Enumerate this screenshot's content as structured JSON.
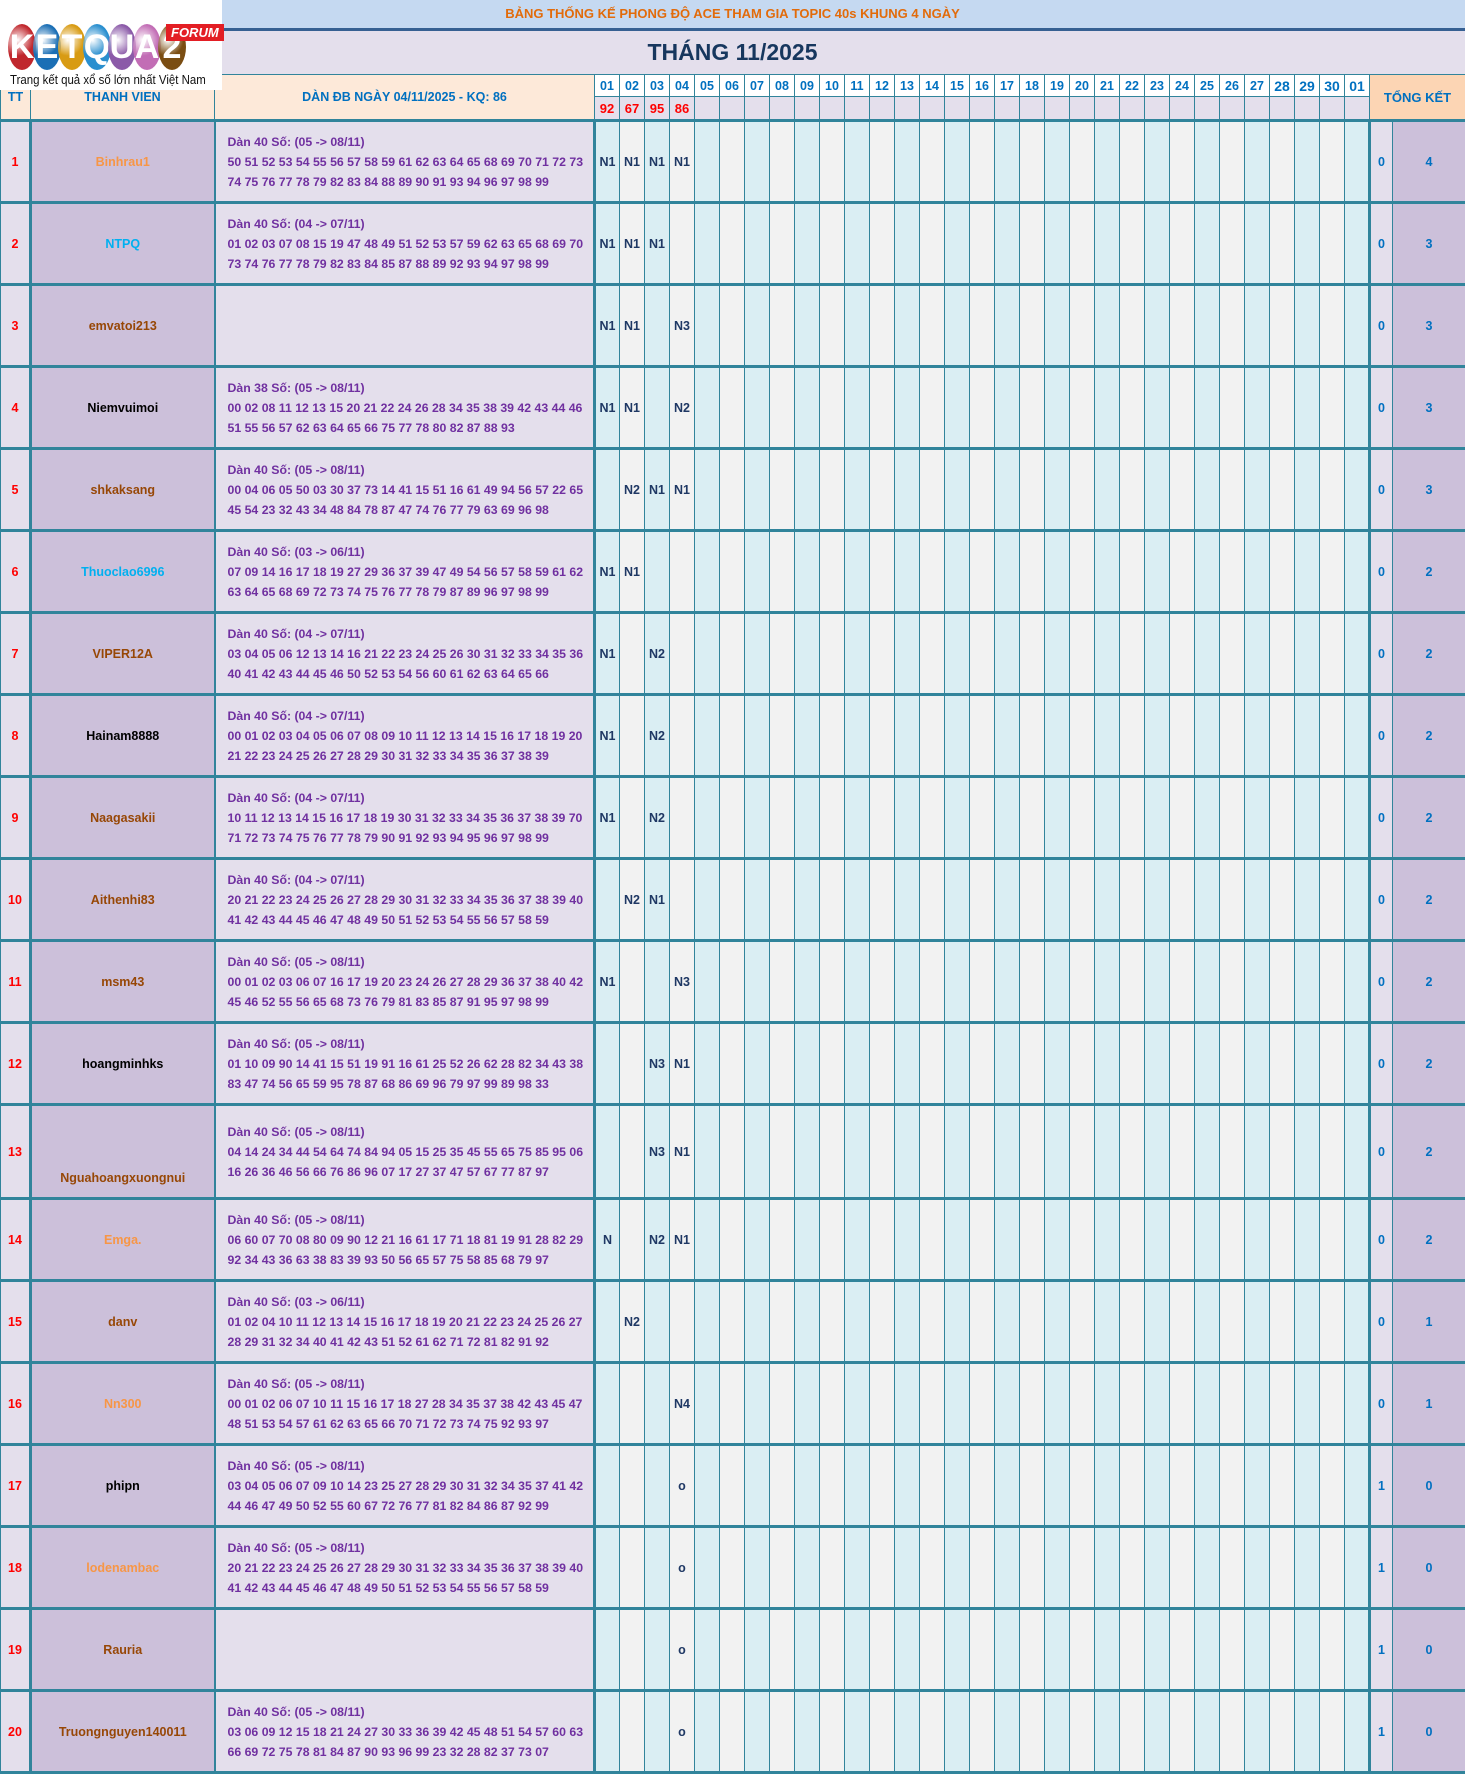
{
  "logo": {
    "letters": [
      "K",
      "E",
      "T",
      "Q",
      "U",
      "A",
      "2"
    ],
    "colors": [
      "#c0272d",
      "#1b6fb5",
      "#d89b13",
      "#2a8fcf",
      "#8b5aa8",
      "#c26db5",
      "#7a4d12"
    ],
    "badge": "FORUM",
    "tagline": "Trang kết quả xổ số lớn nhất Việt Nam"
  },
  "title": "BẢNG THỐNG KẾ PHONG ĐỘ ACE THAM GIA TOPIC 40s KHUNG 4 NGÀY",
  "month": "THÁNG 11/2025",
  "header": {
    "tt": "TT",
    "member": "THANH VIEN",
    "dan": "DÀN ĐB NGÀY 04/11/2025 - KQ: 86",
    "summary": "TỔNG KẾT"
  },
  "days": [
    "01",
    "02",
    "03",
    "04",
    "05",
    "06",
    "07",
    "08",
    "09",
    "10",
    "11",
    "12",
    "13",
    "14",
    "15",
    "16",
    "17",
    "18",
    "19",
    "20",
    "21",
    "22",
    "23",
    "24",
    "25",
    "26",
    "27",
    "28",
    "29",
    "30",
    "01"
  ],
  "results": [
    "92",
    "67",
    "95",
    "86"
  ],
  "colors": {
    "orange": "#f79646",
    "blue": "#00b0f0",
    "brown": "#974706",
    "black": "#000000",
    "border": "#31849b",
    "dan_text": "#7030a0"
  },
  "rows": [
    {
      "tt": "1",
      "name": "Binhrau1",
      "color": "orange",
      "dan_title": "Dàn 40 Số: (05 -> 08/11)",
      "line1": "50 51 52 53 54 55 56 57 58 59 61 62 63 64 65 68 69 70 71 72 73",
      "line2": "74 75 76 77 78 79 82 83 84 88 89 90 91 93 94 96 97 98 99",
      "marks": [
        "N1",
        "N1",
        "N1",
        "N1"
      ],
      "a": "0",
      "total": "4"
    },
    {
      "tt": "2",
      "name": "NTPQ",
      "color": "blue",
      "dan_title": "Dàn 40 Số: (04 -> 07/11)",
      "line1": "01 02 03 07 08 15 19 47 48 49 51 52 53 57 59 62 63 65 68 69 70",
      "line2": "73 74 76 77 78 79 82 83 84 85 87 88 89 92 93 94 97 98 99",
      "marks": [
        "N1",
        "N1",
        "N1",
        ""
      ],
      "a": "0",
      "total": "3"
    },
    {
      "tt": "3",
      "name": "emvatoi213",
      "color": "brown",
      "dan_title": "",
      "line1": "",
      "line2": "",
      "marks": [
        "N1",
        "N1",
        "",
        "N3"
      ],
      "a": "0",
      "total": "3"
    },
    {
      "tt": "4",
      "name": "Niemvuimoi",
      "color": "black",
      "dan_title": "Dàn 38 Số: (05 -> 08/11)",
      "line1": "00 02 08 11 12 13 15 20 21 22 24 26 28 34 35 38 39 42 43 44 46",
      "line2": "51 55 56 57 62 63 64 65 66 75 77 78 80 82 87 88 93",
      "marks": [
        "N1",
        "N1",
        "",
        "N2"
      ],
      "a": "0",
      "total": "3"
    },
    {
      "tt": "5",
      "name": "shkaksang",
      "color": "brown",
      "dan_title": "Dàn 40 Số: (05 -> 08/11)",
      "line1": "00 04 06 05 50 03 30 37 73 14 41 15 51 16 61 49 94 56 57 22 65",
      "line2": "45 54 23 32 43 34 48 84 78 87 47 74 76 77 79 63 69 96 98",
      "marks": [
        "",
        "N2",
        "N1",
        "N1"
      ],
      "a": "0",
      "total": "3"
    },
    {
      "tt": "6",
      "name": "Thuoclao6996",
      "color": "blue",
      "dan_title": "Dàn 40 Số: (03 -> 06/11)",
      "line1": "07 09 14 16 17 18 19 27 29 36 37 39 47 49 54 56 57 58 59 61 62",
      "line2": "63 64 65 68 69 72 73 74 75 76 77 78 79 87 89 96 97 98 99",
      "marks": [
        "N1",
        "N1",
        "",
        ""
      ],
      "a": "0",
      "total": "2"
    },
    {
      "tt": "7",
      "name": "VIPER12A",
      "color": "brown",
      "dan_title": "Dàn 40 Số: (04 -> 07/11)",
      "line1": "03 04 05 06 12 13 14 16 21 22 23 24 25 26 30 31 32 33 34 35 36",
      "line2": "40 41 42 43 44 45 46 50 52 53 54 56 60 61 62 63 64 65 66",
      "marks": [
        "N1",
        "",
        "N2",
        ""
      ],
      "a": "0",
      "total": "2"
    },
    {
      "tt": "8",
      "name": "Hainam8888",
      "color": "black",
      "dan_title": "Dàn 40 Số: (04 -> 07/11)",
      "line1": "00 01 02 03 04 05 06 07 08 09 10 11 12 13 14 15 16 17 18 19 20",
      "line2": "21 22 23 24 25 26 27 28 29 30 31 32 33 34 35 36 37 38 39",
      "marks": [
        "N1",
        "",
        "N2",
        ""
      ],
      "a": "0",
      "total": "2"
    },
    {
      "tt": "9",
      "name": "Naagasakii",
      "color": "brown",
      "dan_title": "Dàn 40 Số: (04 -> 07/11)",
      "line1": "10 11 12 13 14 15 16 17 18 19 30 31 32 33 34 35 36 37 38 39 70",
      "line2": "71 72 73 74 75 76 77 78 79 90 91 92 93 94 95 96 97 98 99",
      "marks": [
        "N1",
        "",
        "N2",
        ""
      ],
      "a": "0",
      "total": "2"
    },
    {
      "tt": "10",
      "name": "Aithenhi83",
      "color": "brown",
      "dan_title": "Dàn 40 Số: (04 -> 07/11)",
      "line1": "20 21 22 23 24 25 26 27 28 29 30 31 32 33 34 35 36 37 38 39 40",
      "line2": "41 42 43 44 45 46 47 48 49 50 51 52 53 54 55 56 57 58 59",
      "marks": [
        "",
        "N2",
        "N1",
        ""
      ],
      "a": "0",
      "total": "2"
    },
    {
      "tt": "11",
      "name": "msm43",
      "color": "brown",
      "dan_title": "Dàn 40 Số: (05 -> 08/11)",
      "line1": "00 01 02 03 06 07 16 17 19 20 23 24 26 27 28 29 36 37 38 40 42",
      "line2": "45 46 52 55 56 65 68 73 76 79 81 83 85 87 91 95 97 98 99",
      "marks": [
        "N1",
        "",
        "",
        "N3"
      ],
      "a": "0",
      "total": "2"
    },
    {
      "tt": "12",
      "name": "hoangminhks",
      "color": "black",
      "dan_title": "Dàn 40 Số: (05 -> 08/11)",
      "line1": "01 10 09 90 14 41 15 51 19 91 16 61 25 52 26 62 28 82 34 43 38",
      "line2": "83 47 74 56 65 59 95 78 87 68 86 69 96 79 97 99 89 98 33",
      "marks": [
        "",
        "",
        "N3",
        "N1"
      ],
      "a": "0",
      "total": "2"
    },
    {
      "tt": "13",
      "name": "Nguahoangxuongnui",
      "color": "brown",
      "dan_title": "Dàn 40 Số: (05 -> 08/11)",
      "line1": "04 14 24 34 44 54 64 74 84 94 05 15 25 35 45 55 65 75 85 95 06",
      "line2": "16 26 36 46 56 66 76 86 96 07 17 27 37 47 57 67 77 87 97",
      "marks": [
        "",
        "",
        "N3",
        "N1"
      ],
      "a": "0",
      "total": "2"
    },
    {
      "tt": "14",
      "name": "Emga.",
      "color": "orange",
      "dan_title": "Dàn 40 Số: (05 -> 08/11)",
      "line1": "06 60 07 70 08 80 09 90 12 21 16 61 17 71 18 81 19 91 28 82 29",
      "line2": "92 34 43 36 63 38 83 39 93 50 56 65 57 75 58 85 68 79 97",
      "marks": [
        "N",
        "",
        "N2",
        "N1"
      ],
      "a": "0",
      "total": "2"
    },
    {
      "tt": "15",
      "name": "danv",
      "color": "brown",
      "dan_title": "Dàn 40 Số: (03 -> 06/11)",
      "line1": "01 02 04 10 11 12 13 14 15 16 17 18 19 20 21 22 23 24 25 26 27",
      "line2": "28 29 31 32 34 40 41 42 43 51 52 61 62 71 72 81 82 91 92",
      "marks": [
        "",
        "N2",
        "",
        ""
      ],
      "a": "0",
      "total": "1"
    },
    {
      "tt": "16",
      "name": "Nn300",
      "color": "orange",
      "dan_title": "Dàn 40 Số: (05 -> 08/11)",
      "line1": "00 01 02 06 07 10 11 15 16 17 18 27 28 34 35 37 38 42 43 45 47",
      "line2": "48 51 53 54 57 61 62 63 65 66 70 71 72 73 74 75 92 93 97",
      "marks": [
        "",
        "",
        "",
        "N4"
      ],
      "a": "0",
      "total": "1"
    },
    {
      "tt": "17",
      "name": "phipn",
      "color": "black",
      "dan_title": "Dàn 40 Số: (05 -> 08/11)",
      "line1": "03 04 05 06 07 09 10 14 23 25 27 28 29 30 31 32 34 35 37 41 42",
      "line2": "44 46 47 49 50 52 55 60 67 72 76 77 81 82 84 86 87 92 99",
      "marks": [
        "",
        "",
        "",
        "o"
      ],
      "a": "1",
      "total": "0"
    },
    {
      "tt": "18",
      "name": "lodenambac",
      "color": "orange",
      "dan_title": "Dàn 40 Số: (05 -> 08/11)",
      "line1": "20 21 22 23 24 25 26 27 28 29 30 31 32 33 34 35 36 37 38 39 40",
      "line2": "41 42 43 44 45 46 47 48 49 50 51 52 53 54 55 56 57 58 59",
      "marks": [
        "",
        "",
        "",
        "o"
      ],
      "a": "1",
      "total": "0"
    },
    {
      "tt": "19",
      "name": "Rauria",
      "color": "brown",
      "dan_title": "",
      "line1": "",
      "line2": "",
      "marks": [
        "",
        "",
        "",
        "o"
      ],
      "a": "1",
      "total": "0"
    },
    {
      "tt": "20",
      "name": "Truongnguyen140011",
      "color": "brown",
      "dan_title": "Dàn 40 Số: (05 -> 08/11)",
      "line1": "03 06 09 12 15 18 21 24 27 30 33 36 39 42 45 48 51 54 57 60 63",
      "line2": "66 69 72 75 78 81 84 87 90 93 96 99 23 32 28 82 37 73 07",
      "marks": [
        "",
        "",
        "",
        "o"
      ],
      "a": "1",
      "total": "0"
    }
  ]
}
